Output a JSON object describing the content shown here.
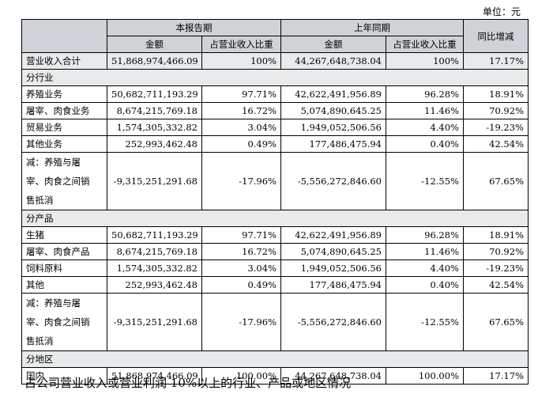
{
  "unit_label": "单位：元",
  "header": {
    "current_period": "本报告期",
    "prior_period": "上年同期",
    "yoy_change": "同比增减",
    "amount": "金额",
    "share_of_revenue": "占营业收入比重"
  },
  "total_row": {
    "label": "营业收入合计",
    "cur_amount": "51,868,974,466.09",
    "cur_share": "100%",
    "prev_amount": "44,267,648,738.04",
    "prev_share": "100%",
    "yoy": "17.17%"
  },
  "sections": [
    {
      "title": "分行业",
      "rows": [
        {
          "label": "养殖业务",
          "cur_amount": "50,682,711,193.29",
          "cur_share": "97.71%",
          "prev_amount": "42,622,491,956.89",
          "prev_share": "96.28%",
          "yoy": "18.91%"
        },
        {
          "label": "屠宰、肉食业务",
          "cur_amount": "8,674,215,769.18",
          "cur_share": "16.72%",
          "prev_amount": "5,074,890,645.25",
          "prev_share": "11.46%",
          "yoy": "70.92%"
        },
        {
          "label": "贸易业务",
          "cur_amount": "1,574,305,332.82",
          "cur_share": "3.04%",
          "prev_amount": "1,949,052,506.56",
          "prev_share": "4.40%",
          "yoy": "-19.23%"
        },
        {
          "label": "其他业务",
          "cur_amount": "252,993,462.48",
          "cur_share": "0.49%",
          "prev_amount": "177,486,475.94",
          "prev_share": "0.40%",
          "yoy": "42.54%"
        },
        {
          "label_lines": [
            "减：养殖与屠",
            "宰、肉食之间销",
            "售抵消"
          ],
          "cur_amount": "-9,315,251,291.68",
          "cur_share": "-17.96%",
          "prev_amount": "-5,556,272,846.60",
          "prev_share": "-12.55%",
          "yoy": "67.65%"
        }
      ]
    },
    {
      "title": "分产品",
      "rows": [
        {
          "label": "生猪",
          "cur_amount": "50,682,711,193.29",
          "cur_share": "97.71%",
          "prev_amount": "42,622,491,956.89",
          "prev_share": "96.28%",
          "yoy": "18.91%"
        },
        {
          "label": "屠宰、肉食产品",
          "cur_amount": "8,674,215,769.18",
          "cur_share": "16.72%",
          "prev_amount": "5,074,890,645.25",
          "prev_share": "11.46%",
          "yoy": "70.92%"
        },
        {
          "label": "饲料原料",
          "cur_amount": "1,574,305,332.82",
          "cur_share": "3.04%",
          "prev_amount": "1,949,052,506.56",
          "prev_share": "4.40%",
          "yoy": "-19.23%"
        },
        {
          "label": "其他",
          "cur_amount": "252,993,462.48",
          "cur_share": "0.49%",
          "prev_amount": "177,486,475.94",
          "prev_share": "0.40%",
          "yoy": "42.54%"
        },
        {
          "label_lines": [
            "减：养殖与屠",
            "宰、肉食之间销",
            "售抵消"
          ],
          "cur_amount": "-9,315,251,291.68",
          "cur_share": "-17.96%",
          "prev_amount": "-5,556,272,846.60",
          "prev_share": "-12.55%",
          "yoy": "67.65%"
        }
      ]
    },
    {
      "title": "分地区",
      "rows": [
        {
          "label": "国内",
          "cur_amount": "51,868,974,466.09",
          "cur_share": "100.00%",
          "prev_amount": "44,267,648,738.04",
          "prev_share": "100.00%",
          "yoy": "17.17%"
        }
      ]
    }
  ],
  "caption": "占公司营业收入或营业利润 10%以上的行业、产品或地区情况"
}
